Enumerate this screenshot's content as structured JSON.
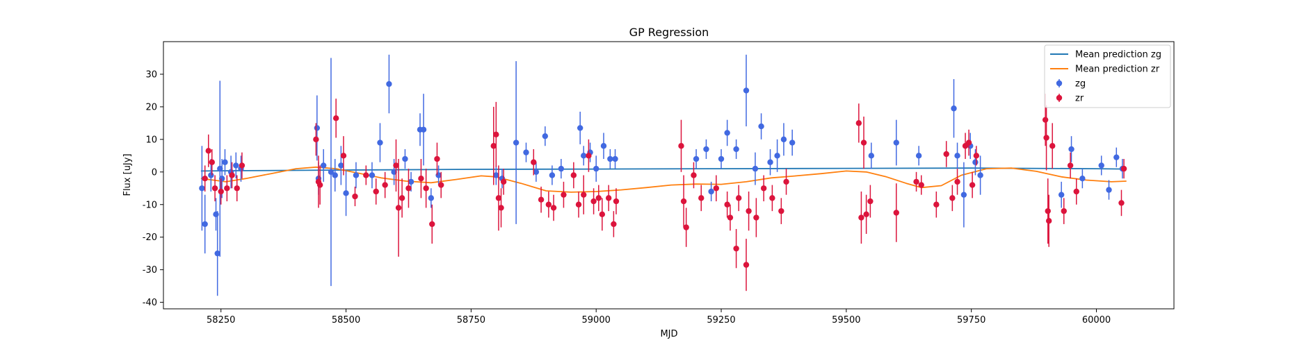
{
  "chart_data": {
    "type": "scatter",
    "title": "GP Regression",
    "xlabel": "MJD",
    "ylabel": "Flux [uJy]",
    "xlim": [
      58135,
      60155
    ],
    "ylim": [
      -42,
      40
    ],
    "xticks": [
      58250,
      58500,
      58750,
      59000,
      59250,
      59500,
      59750,
      60000
    ],
    "yticks": [
      -40,
      -30,
      -20,
      -10,
      0,
      10,
      20,
      30
    ],
    "grid": false,
    "legend_position": "top-right",
    "legend": [
      {
        "label": "Mean prediction zg",
        "kind": "line",
        "color": "#1f77b4"
      },
      {
        "label": "Mean prediction zr",
        "kind": "line",
        "color": "#ff7f0e"
      },
      {
        "label": "zg",
        "kind": "errorbar",
        "color": "#4169e1"
      },
      {
        "label": "zr",
        "kind": "errorbar",
        "color": "#dc143c"
      }
    ],
    "lines": [
      {
        "name": "Mean prediction zg",
        "color": "#1f77b4",
        "x": [
          58210,
          58300,
          58500,
          58750,
          59000,
          59250,
          59500,
          59750,
          60000,
          60060
        ],
        "y": [
          0.3,
          0.4,
          0.6,
          0.8,
          0.9,
          1.0,
          1.1,
          1.2,
          1.0,
          0.9
        ]
      },
      {
        "name": "Mean prediction zr",
        "color": "#ff7f0e",
        "x": [
          58210,
          58260,
          58300,
          58350,
          58400,
          58440,
          58480,
          58530,
          58570,
          58620,
          58670,
          58720,
          58770,
          58800,
          58850,
          58900,
          58950,
          59000,
          59050,
          59100,
          59150,
          59200,
          59250,
          59300,
          59350,
          59400,
          59450,
          59500,
          59540,
          59580,
          59620,
          59650,
          59690,
          59730,
          59780,
          59830,
          59880,
          59930,
          59980,
          60030,
          60060
        ],
        "y": [
          -2.0,
          -3.0,
          -2.0,
          -0.5,
          1.0,
          1.5,
          1.0,
          -0.5,
          -1.8,
          -2.8,
          -3.3,
          -2.3,
          -1.2,
          -1.5,
          -3.5,
          -5.8,
          -6.2,
          -6.0,
          -5.5,
          -4.8,
          -4.0,
          -3.7,
          -3.8,
          -3.0,
          -1.8,
          -1.2,
          -0.5,
          0.3,
          0.0,
          -1.5,
          -3.5,
          -4.8,
          -4.2,
          -1.0,
          1.0,
          1.2,
          0.2,
          -1.5,
          -2.5,
          -3.0,
          -2.8
        ]
      }
    ],
    "series": [
      {
        "name": "zg",
        "color": "#4169e1",
        "points": [
          [
            58212,
            -5,
            13
          ],
          [
            58218,
            -16,
            9
          ],
          [
            58230,
            -1,
            5
          ],
          [
            58240,
            -13,
            5
          ],
          [
            58243,
            -25,
            13
          ],
          [
            58248,
            1,
            27
          ],
          [
            58252,
            -2,
            6
          ],
          [
            58258,
            3,
            4
          ],
          [
            58270,
            0,
            5
          ],
          [
            58280,
            2,
            4
          ],
          [
            58290,
            1,
            4
          ],
          [
            58442,
            13.5,
            10
          ],
          [
            58445,
            -2,
            5
          ],
          [
            58455,
            2,
            5
          ],
          [
            58470,
            0,
            35
          ],
          [
            58478,
            -1,
            5
          ],
          [
            58490,
            2,
            6
          ],
          [
            58500,
            -6.5,
            7
          ],
          [
            58520,
            -1,
            4
          ],
          [
            58552,
            -1,
            4
          ],
          [
            58568,
            9,
            6
          ],
          [
            58586,
            27,
            9
          ],
          [
            58596,
            0,
            4
          ],
          [
            58618,
            4,
            3
          ],
          [
            58630,
            -3,
            3
          ],
          [
            58648,
            13,
            5
          ],
          [
            58655,
            13,
            11
          ],
          [
            58670,
            -8,
            3
          ],
          [
            58685,
            -1,
            3
          ],
          [
            58800,
            -1,
            3
          ],
          [
            58812,
            -2,
            3
          ],
          [
            58840,
            9,
            25
          ],
          [
            58860,
            6,
            3
          ],
          [
            58880,
            0,
            3
          ],
          [
            58898,
            11,
            3
          ],
          [
            58912,
            -1,
            3
          ],
          [
            58930,
            1,
            3
          ],
          [
            58968,
            13.5,
            5
          ],
          [
            58975,
            5,
            3
          ],
          [
            58988,
            6,
            3
          ],
          [
            59000,
            1,
            4
          ],
          [
            59015,
            8,
            4
          ],
          [
            59028,
            4,
            3
          ],
          [
            59038,
            4,
            3
          ],
          [
            59200,
            4,
            3
          ],
          [
            59220,
            7,
            3
          ],
          [
            59230,
            -6,
            3
          ],
          [
            59250,
            4,
            3
          ],
          [
            59262,
            12,
            4
          ],
          [
            59280,
            7,
            3
          ],
          [
            59300,
            25,
            11
          ],
          [
            59318,
            1,
            5
          ],
          [
            59330,
            14,
            4
          ],
          [
            59348,
            3,
            4
          ],
          [
            59362,
            5,
            5
          ],
          [
            59375,
            10,
            5
          ],
          [
            59392,
            9,
            4
          ],
          [
            59550,
            5,
            4
          ],
          [
            59600,
            9,
            7
          ],
          [
            59645,
            5,
            3
          ],
          [
            59715,
            19.5,
            9
          ],
          [
            59722,
            5,
            4
          ],
          [
            59735,
            -7,
            10
          ],
          [
            59748,
            8,
            4
          ],
          [
            59758,
            3,
            4
          ],
          [
            59768,
            -1,
            6
          ],
          [
            59930,
            -7,
            4
          ],
          [
            59950,
            7,
            4
          ],
          [
            59972,
            -2,
            3
          ],
          [
            60010,
            2,
            3
          ],
          [
            60025,
            -5.5,
            3
          ],
          [
            60040,
            4.5,
            3
          ],
          [
            60052,
            1,
            3
          ]
        ]
      },
      {
        "name": "zr",
        "color": "#dc143c",
        "points": [
          [
            58218,
            -2,
            4
          ],
          [
            58225,
            6.5,
            5
          ],
          [
            58232,
            3,
            4
          ],
          [
            58238,
            -5,
            4
          ],
          [
            58250,
            -6,
            4
          ],
          [
            58262,
            -5,
            4
          ],
          [
            58272,
            -1,
            4
          ],
          [
            58282,
            -5,
            4
          ],
          [
            58292,
            2,
            4
          ],
          [
            58440,
            10,
            5
          ],
          [
            58445,
            -3,
            8
          ],
          [
            58448,
            -4,
            6
          ],
          [
            58480,
            16.5,
            6
          ],
          [
            58495,
            5,
            6
          ],
          [
            58518,
            -7.5,
            3
          ],
          [
            58540,
            -1,
            3
          ],
          [
            58560,
            -6,
            4
          ],
          [
            58578,
            -4,
            4
          ],
          [
            58600,
            2,
            8
          ],
          [
            58605,
            -11,
            15
          ],
          [
            58612,
            -8,
            6
          ],
          [
            58625,
            -5,
            6
          ],
          [
            58650,
            -2,
            6
          ],
          [
            58660,
            -5,
            6
          ],
          [
            58672,
            -16,
            6
          ],
          [
            58682,
            4,
            5
          ],
          [
            58690,
            -4,
            4
          ],
          [
            58795,
            8,
            12
          ],
          [
            58800,
            11.5,
            10
          ],
          [
            58805,
            -8,
            10
          ],
          [
            58810,
            -11,
            6
          ],
          [
            58815,
            -3,
            4
          ],
          [
            58875,
            3,
            4
          ],
          [
            58890,
            -8.5,
            4
          ],
          [
            58905,
            -10,
            4
          ],
          [
            58915,
            -11,
            4
          ],
          [
            58935,
            -7,
            4
          ],
          [
            58955,
            -1,
            4
          ],
          [
            58965,
            -10,
            4
          ],
          [
            58975,
            -7,
            6
          ],
          [
            58985,
            5,
            5
          ],
          [
            58995,
            -9,
            4
          ],
          [
            59005,
            -8,
            4
          ],
          [
            59012,
            -13,
            5
          ],
          [
            59025,
            -8,
            4
          ],
          [
            59035,
            -16,
            4
          ],
          [
            59040,
            -9,
            4
          ],
          [
            59170,
            8,
            8
          ],
          [
            59175,
            -9,
            8
          ],
          [
            59180,
            -17,
            6
          ],
          [
            59195,
            -1,
            4
          ],
          [
            59210,
            -8,
            4
          ],
          [
            59240,
            -5,
            4
          ],
          [
            59262,
            -10,
            4
          ],
          [
            59268,
            -14,
            4
          ],
          [
            59280,
            -23.5,
            6
          ],
          [
            59285,
            -8,
            4
          ],
          [
            59300,
            -28.5,
            8
          ],
          [
            59305,
            -12,
            6
          ],
          [
            59320,
            -14,
            6
          ],
          [
            59335,
            -5,
            4
          ],
          [
            59352,
            -8,
            4
          ],
          [
            59370,
            -12,
            4
          ],
          [
            59380,
            -3,
            4
          ],
          [
            59525,
            15,
            6
          ],
          [
            59530,
            -14,
            8
          ],
          [
            59535,
            9,
            8
          ],
          [
            59540,
            -13,
            6
          ],
          [
            59548,
            -9,
            5
          ],
          [
            59600,
            -12.5,
            9
          ],
          [
            59640,
            -3,
            3
          ],
          [
            59650,
            -4,
            3
          ],
          [
            59680,
            -10,
            4
          ],
          [
            59700,
            5.5,
            4
          ],
          [
            59712,
            -8,
            4
          ],
          [
            59722,
            -3,
            4
          ],
          [
            59738,
            8,
            4
          ],
          [
            59745,
            9,
            4
          ],
          [
            59752,
            -4,
            4
          ],
          [
            59760,
            5,
            3
          ],
          [
            59898,
            16,
            8
          ],
          [
            59900,
            10.5,
            10
          ],
          [
            59903,
            -12,
            10
          ],
          [
            59905,
            -15,
            8
          ],
          [
            59912,
            8,
            7
          ],
          [
            59935,
            -12,
            4
          ],
          [
            59948,
            2,
            4
          ],
          [
            59960,
            -6,
            4
          ],
          [
            60050,
            -9.5,
            4
          ],
          [
            60055,
            1,
            3
          ]
        ]
      }
    ]
  }
}
